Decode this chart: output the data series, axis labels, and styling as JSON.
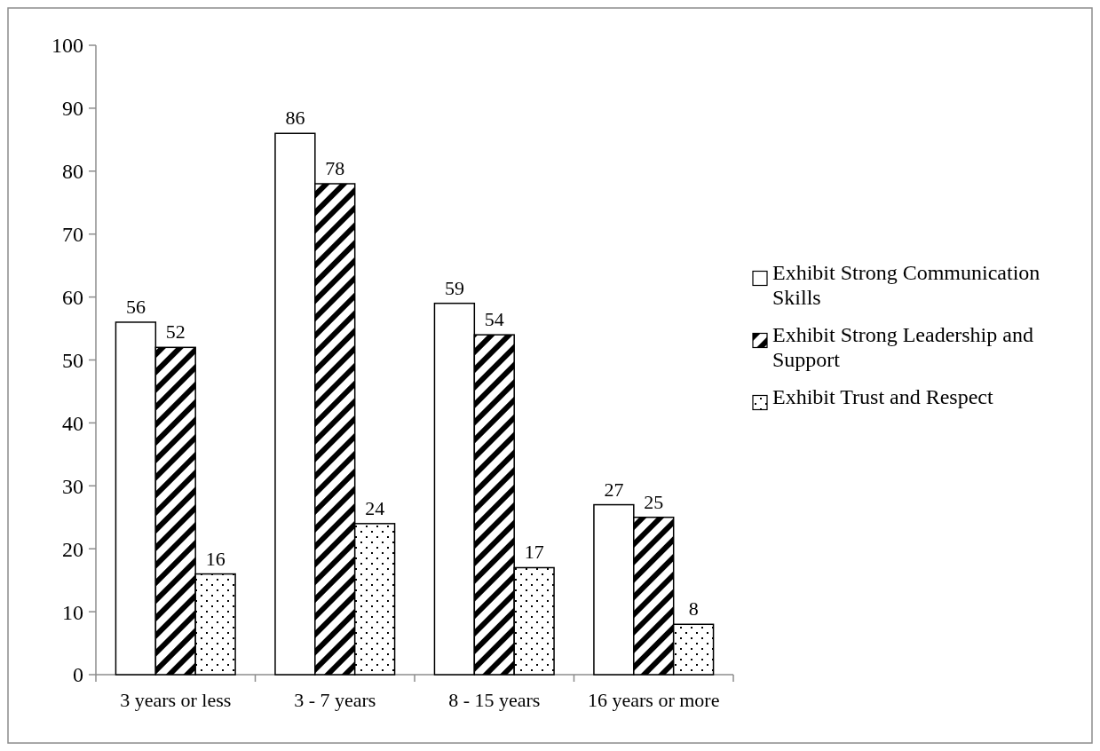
{
  "chart_data": {
    "type": "bar",
    "categories": [
      "3 years or less",
      "3 - 7 years",
      "8 - 15 years",
      "16 years or more"
    ],
    "series": [
      {
        "name": "Exhibit Strong Communication Skills",
        "color": "#ffffff",
        "values": [
          56,
          86,
          59,
          27
        ]
      },
      {
        "name": "Exhibit Strong Leadership and Support",
        "color": "#000000",
        "values": [
          52,
          78,
          54,
          25
        ]
      },
      {
        "name": "Exhibit Trust and Respect",
        "color": "#000000",
        "values": [
          16,
          24,
          17,
          8
        ]
      }
    ],
    "ylim": [
      0,
      100
    ],
    "yticks": [
      0,
      10,
      20,
      30,
      40,
      50,
      60,
      70,
      80,
      90,
      100
    ],
    "grid": false,
    "legend": "right",
    "data_labels": true
  }
}
